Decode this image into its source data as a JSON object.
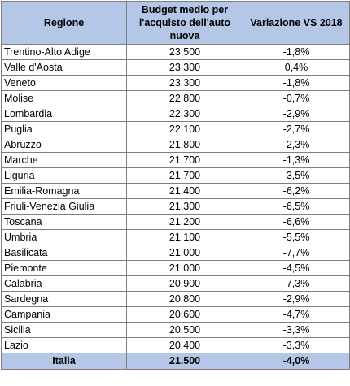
{
  "table": {
    "headers": {
      "region": "Regione",
      "budget": "Budget medio per l'acquisto dell'auto nuova",
      "variation": "Variazione VS 2018"
    },
    "rows": [
      {
        "region": "Trentino-Alto Adige",
        "budget": "23.500",
        "variation": "-1,8%"
      },
      {
        "region": "Valle d'Aosta",
        "budget": "23.300",
        "variation": "0,4%"
      },
      {
        "region": "Veneto",
        "budget": "23.300",
        "variation": "-1,8%"
      },
      {
        "region": "Molise",
        "budget": "22.800",
        "variation": "-0,7%"
      },
      {
        "region": "Lombardia",
        "budget": "22.300",
        "variation": "-2,9%"
      },
      {
        "region": "Puglia",
        "budget": "22.100",
        "variation": "-2,7%"
      },
      {
        "region": "Abruzzo",
        "budget": "21.800",
        "variation": "-2,3%"
      },
      {
        "region": "Marche",
        "budget": "21.700",
        "variation": "-1,3%"
      },
      {
        "region": "Liguria",
        "budget": "21.700",
        "variation": "-3,5%"
      },
      {
        "region": "Emilia-Romagna",
        "budget": "21.400",
        "variation": "-6,2%"
      },
      {
        "region": "Friuli-Venezia Giulia",
        "budget": "21.300",
        "variation": "-6,5%"
      },
      {
        "region": "Toscana",
        "budget": "21.200",
        "variation": "-6,6%"
      },
      {
        "region": "Umbria",
        "budget": "21.100",
        "variation": "-5,5%"
      },
      {
        "region": "Basilicata",
        "budget": "21.000",
        "variation": "-7,7%"
      },
      {
        "region": "Piemonte",
        "budget": "21.000",
        "variation": "-4,5%"
      },
      {
        "region": "Calabria",
        "budget": "20.900",
        "variation": "-7,3%"
      },
      {
        "region": "Sardegna",
        "budget": "20.800",
        "variation": "-2,9%"
      },
      {
        "region": "Campania",
        "budget": "20.600",
        "variation": "-4,7%"
      },
      {
        "region": "Sicilia",
        "budget": "20.500",
        "variation": "-3,3%"
      },
      {
        "region": "Lazio",
        "budget": "20.400",
        "variation": "-3,3%"
      }
    ],
    "total": {
      "region": "Italia",
      "budget": "21.500",
      "variation": "-4,0%"
    },
    "colors": {
      "header_bg": "#b4c7e7",
      "border": "#7f7f7f"
    }
  }
}
